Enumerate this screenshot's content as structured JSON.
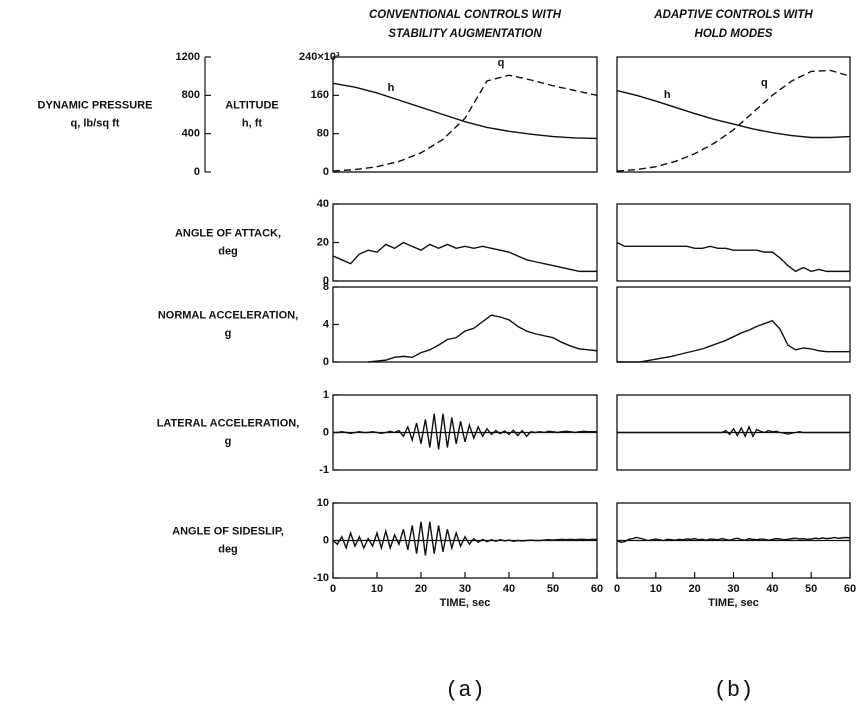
{
  "captions": [
    "(a)",
    "(b)"
  ],
  "chart_data": [
    {
      "type": "line",
      "title": [
        "CONVENTIONAL CONTROLS WITH",
        "STABILITY AUGMENTATION"
      ],
      "ylabel": [
        "ALTITUDE",
        "h, ft"
      ],
      "y2label": [
        "DYNAMIC PRESSURE",
        "q, lb/sq ft"
      ],
      "xlim": [
        0,
        60
      ],
      "ylim": [
        0,
        240
      ],
      "yticks": [
        0,
        80,
        160,
        {
          "value": 240,
          "label": "240×10³"
        }
      ],
      "y2lim": [
        0,
        1200
      ],
      "y2ticks": [
        0,
        400,
        800,
        1200
      ],
      "x": [
        0,
        5,
        10,
        15,
        20,
        25,
        30,
        35,
        40,
        45,
        50,
        55,
        60
      ],
      "series": [
        {
          "name": "h",
          "color": "#111111",
          "dash": false,
          "values": [
            185,
            177,
            165,
            150,
            135,
            120,
            105,
            93,
            85,
            79,
            74,
            71,
            70
          ]
        },
        {
          "name": "q",
          "color": "#111111",
          "dash": true,
          "axis": "y2",
          "values": [
            10,
            25,
            55,
            110,
            200,
            340,
            560,
            950,
            1010,
            960,
            900,
            850,
            800
          ]
        }
      ]
    },
    {
      "type": "line",
      "ylabel": [
        "ANGLE OF ATTACK,",
        "deg"
      ],
      "xlim": [
        0,
        60
      ],
      "ylim": [
        0,
        40
      ],
      "yticks": [
        0,
        20,
        40
      ],
      "x": [
        0,
        2,
        4,
        6,
        8,
        10,
        12,
        14,
        16,
        18,
        20,
        22,
        24,
        26,
        28,
        30,
        32,
        34,
        36,
        38,
        40,
        42,
        44,
        46,
        48,
        50,
        52,
        54,
        56,
        58,
        60
      ],
      "series": [
        {
          "color": "#111111",
          "values": [
            13,
            11,
            9,
            14,
            16,
            15,
            19,
            17,
            20,
            18,
            16,
            19,
            17,
            19,
            17,
            18,
            17,
            18,
            17,
            16,
            15,
            13,
            11,
            10,
            9,
            8,
            7,
            6,
            5,
            5,
            5
          ]
        }
      ]
    },
    {
      "type": "line",
      "ylabel": [
        "NORMAL ACCELERATION,",
        "g"
      ],
      "xlim": [
        0,
        60
      ],
      "ylim": [
        0,
        8
      ],
      "yticks": [
        0,
        4,
        8
      ],
      "x": [
        0,
        2,
        4,
        6,
        8,
        10,
        12,
        14,
        16,
        18,
        20,
        22,
        24,
        26,
        28,
        30,
        32,
        34,
        36,
        38,
        40,
        42,
        44,
        46,
        48,
        50,
        52,
        54,
        56,
        58,
        60
      ],
      "series": [
        {
          "color": "#111111",
          "values": [
            null,
            null,
            null,
            null,
            0,
            0.1,
            0.2,
            0.5,
            0.6,
            0.5,
            1,
            1.3,
            1.8,
            2.4,
            2.6,
            3.3,
            3.6,
            4.3,
            5,
            4.8,
            4.5,
            3.8,
            3.3,
            3,
            2.8,
            2.6,
            2.1,
            1.7,
            1.4,
            1.3,
            1.2
          ]
        }
      ]
    },
    {
      "type": "line",
      "ylabel": [
        "LATERAL ACCELERATION,",
        "g"
      ],
      "xlim": [
        0,
        60
      ],
      "ylim": [
        -1,
        1
      ],
      "yticks": [
        -1,
        0,
        1
      ],
      "x": [
        0,
        1,
        2,
        3,
        4,
        5,
        6,
        7,
        8,
        9,
        10,
        11,
        12,
        13,
        14,
        15,
        16,
        17,
        18,
        19,
        20,
        21,
        22,
        23,
        24,
        25,
        26,
        27,
        28,
        29,
        30,
        31,
        32,
        33,
        34,
        35,
        36,
        37,
        38,
        39,
        40,
        41,
        42,
        43,
        44,
        45,
        46,
        47,
        48,
        49,
        50,
        51,
        52,
        53,
        54,
        55,
        56,
        57,
        58,
        59,
        60
      ],
      "series": [
        {
          "color": "#111111",
          "values": [
            0,
            0,
            0.02,
            0,
            -0.02,
            0,
            0.02,
            0,
            0,
            0.02,
            0,
            -0.02,
            0,
            0.03,
            0,
            0.05,
            -0.1,
            0.15,
            -0.2,
            0.25,
            -0.3,
            0.35,
            -0.4,
            0.5,
            -0.45,
            0.5,
            -0.4,
            0.4,
            -0.3,
            0.3,
            -0.25,
            0.2,
            -0.15,
            0.15,
            -0.1,
            0.1,
            -0.05,
            0.05,
            -0.03,
            0.04,
            -0.05,
            0.06,
            -0.08,
            0.05,
            -0.1,
            0.02,
            0,
            0.02,
            0,
            0.03,
            0.02,
            0,
            0.02,
            0.03,
            0.02,
            0,
            0.02,
            0.03,
            0.02,
            0.02,
            0.02
          ]
        }
      ]
    },
    {
      "type": "line",
      "ylabel": [
        "ANGLE OF SIDESLIP,",
        "deg"
      ],
      "xlabel": "TIME, sec",
      "xlim": [
        0,
        60
      ],
      "xticks": [
        0,
        10,
        20,
        30,
        40,
        50,
        60
      ],
      "ylim": [
        -10,
        10
      ],
      "yticks": [
        -10,
        0,
        10
      ],
      "x": [
        0,
        1,
        2,
        3,
        4,
        5,
        6,
        7,
        8,
        9,
        10,
        11,
        12,
        13,
        14,
        15,
        16,
        17,
        18,
        19,
        20,
        21,
        22,
        23,
        24,
        25,
        26,
        27,
        28,
        29,
        30,
        31,
        32,
        33,
        34,
        35,
        36,
        37,
        38,
        39,
        40,
        41,
        42,
        43,
        44,
        45,
        46,
        47,
        48,
        49,
        50,
        51,
        52,
        53,
        54,
        55,
        56,
        57,
        58,
        59,
        60
      ],
      "series": [
        {
          "color": "#111111",
          "values": [
            0,
            -1,
            1,
            -2,
            2,
            -1.5,
            1,
            -2,
            0.5,
            -1.5,
            2,
            -2,
            2.5,
            -2,
            1.5,
            -1,
            3,
            -2.5,
            4,
            -3.5,
            5,
            -4,
            5,
            -3.5,
            4,
            -3,
            3,
            -2,
            2,
            -1.5,
            1,
            -1,
            0.5,
            -0.5,
            0.3,
            -0.3,
            0.2,
            -0.2,
            0.2,
            -0.1,
            0.1,
            -0.2,
            0,
            -0.1,
            0,
            0.1,
            0,
            0,
            0.1,
            0.2,
            0.1,
            0.2,
            0.3,
            0.2,
            0.3,
            0.2,
            0.3,
            0.3,
            0.2,
            0.3,
            0.3
          ]
        }
      ]
    },
    {
      "type": "line",
      "title": [
        "ADAPTIVE CONTROLS WITH",
        "HOLD MODES"
      ],
      "xlim": [
        0,
        60
      ],
      "ylim": [
        0,
        240
      ],
      "y2lim": [
        0,
        1200
      ],
      "x": [
        0,
        5,
        10,
        15,
        20,
        25,
        30,
        35,
        40,
        45,
        50,
        55,
        60
      ],
      "series": [
        {
          "name": "h",
          "color": "#111111",
          "dash": false,
          "values": [
            170,
            160,
            148,
            135,
            122,
            110,
            100,
            90,
            82,
            76,
            72,
            72,
            74
          ]
        },
        {
          "name": "q",
          "color": "#111111",
          "dash": true,
          "axis": "y2",
          "values": [
            10,
            25,
            55,
            110,
            190,
            300,
            440,
            620,
            800,
            950,
            1050,
            1060,
            1000
          ]
        }
      ]
    },
    {
      "type": "line",
      "xlim": [
        0,
        60
      ],
      "ylim": [
        0,
        40
      ],
      "x": [
        0,
        2,
        4,
        6,
        8,
        10,
        12,
        14,
        16,
        18,
        20,
        22,
        24,
        26,
        28,
        30,
        32,
        34,
        36,
        38,
        40,
        42,
        44,
        46,
        48,
        50,
        52,
        54,
        56,
        58,
        60
      ],
      "series": [
        {
          "color": "#111111",
          "values": [
            20,
            18,
            18,
            18,
            18,
            18,
            18,
            18,
            18,
            18,
            17,
            17,
            18,
            17,
            17,
            16,
            16,
            16,
            16,
            15,
            15,
            12,
            8,
            5,
            7,
            5,
            6,
            5,
            5,
            5,
            5
          ]
        }
      ]
    },
    {
      "type": "line",
      "xlim": [
        0,
        60
      ],
      "ylim": [
        0,
        8
      ],
      "x": [
        0,
        2,
        4,
        6,
        8,
        10,
        12,
        14,
        16,
        18,
        20,
        22,
        24,
        26,
        28,
        30,
        32,
        34,
        36,
        38,
        40,
        42,
        44,
        46,
        48,
        50,
        52,
        54,
        56,
        58,
        60
      ],
      "series": [
        {
          "color": "#111111",
          "values": [
            0,
            0,
            0,
            0,
            0.15,
            0.3,
            0.45,
            0.6,
            0.8,
            1,
            1.2,
            1.4,
            1.7,
            2,
            2.3,
            2.7,
            3.1,
            3.4,
            3.8,
            4.1,
            4.4,
            3.5,
            1.8,
            1.3,
            1.5,
            1.4,
            1.2,
            1.1,
            1.1,
            1.1,
            1.1
          ]
        }
      ]
    },
    {
      "type": "line",
      "xlim": [
        0,
        60
      ],
      "ylim": [
        -1,
        1
      ],
      "x": [
        0,
        1,
        2,
        3,
        4,
        5,
        6,
        7,
        8,
        9,
        10,
        11,
        12,
        13,
        14,
        15,
        16,
        17,
        18,
        19,
        20,
        21,
        22,
        23,
        24,
        25,
        26,
        27,
        28,
        29,
        30,
        31,
        32,
        33,
        34,
        35,
        36,
        37,
        38,
        39,
        40,
        41,
        42,
        43,
        44,
        45,
        46,
        47,
        48,
        49,
        50,
        51,
        52,
        53,
        54,
        55,
        56,
        57,
        58,
        59,
        60
      ],
      "series": [
        {
          "color": "#111111",
          "values": [
            0,
            0,
            0,
            0,
            0,
            0,
            0,
            0,
            0,
            0,
            0,
            0,
            0,
            0,
            0,
            0,
            0,
            0,
            0,
            0,
            0,
            0,
            0,
            0,
            0,
            0,
            0,
            0,
            0.05,
            -0.05,
            0.1,
            -0.08,
            0.12,
            -0.1,
            0.15,
            -0.1,
            0.08,
            0.03,
            0,
            0.05,
            0.02,
            0.03,
            0,
            -0.02,
            -0.04,
            -0.02,
            0,
            0.02,
            0,
            0,
            0,
            0,
            0,
            0,
            0,
            0,
            0,
            0,
            0,
            0,
            0
          ]
        }
      ]
    },
    {
      "type": "line",
      "xlabel": "TIME, sec",
      "xlim": [
        0,
        60
      ],
      "xticks": [
        0,
        10,
        20,
        30,
        40,
        50,
        60
      ],
      "ylim": [
        -10,
        10
      ],
      "x": [
        0,
        1,
        2,
        3,
        4,
        5,
        6,
        7,
        8,
        9,
        10,
        11,
        12,
        13,
        14,
        15,
        16,
        17,
        18,
        19,
        20,
        21,
        22,
        23,
        24,
        25,
        26,
        27,
        28,
        29,
        30,
        31,
        32,
        33,
        34,
        35,
        36,
        37,
        38,
        39,
        40,
        41,
        42,
        43,
        44,
        45,
        46,
        47,
        48,
        49,
        50,
        51,
        52,
        53,
        54,
        55,
        56,
        57,
        58,
        59,
        60
      ],
      "series": [
        {
          "color": "#111111",
          "values": [
            0,
            -0.5,
            -0.3,
            0.3,
            0.5,
            0.8,
            0.6,
            0.3,
            0,
            0.2,
            0.4,
            0.2,
            0,
            0.3,
            0.2,
            0.1,
            0.3,
            0.2,
            0.4,
            0.3,
            0.5,
            0.2,
            0.3,
            0.1,
            0.4,
            0.3,
            0.2,
            0.5,
            0.3,
            0.1,
            0.4,
            0.6,
            0.2,
            0.1,
            0.5,
            0.3,
            0.2,
            0.4,
            0.3,
            0.1,
            0.3,
            0.5,
            0.4,
            0.2,
            0.3,
            0.5,
            0.6,
            0.4,
            0.5,
            0.3,
            0.4,
            0.6,
            0.5,
            0.7,
            0.5,
            0.6,
            0.8,
            0.6,
            0.7,
            0.8,
            0.7
          ]
        }
      ]
    }
  ]
}
